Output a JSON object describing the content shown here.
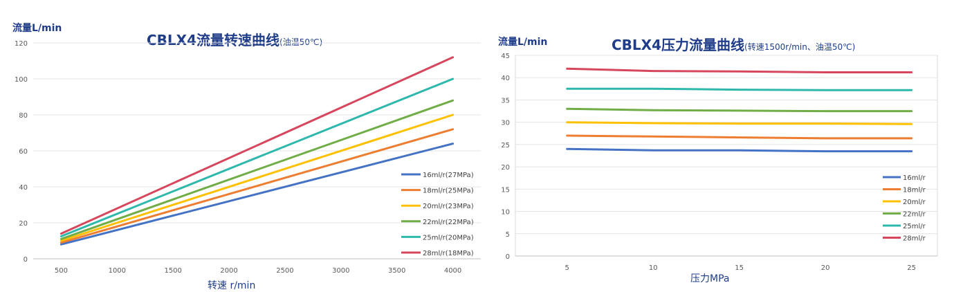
{
  "chart_data": [
    {
      "type": "line",
      "title": "CBLX4流量转速曲线",
      "subtitle": "(油温50℃)",
      "ylabel": "流量L/min",
      "xlabel": "转速 r/min",
      "ylim": [
        0,
        120
      ],
      "yticks": [
        0,
        20,
        40,
        60,
        80,
        100,
        120
      ],
      "xlim": [
        250,
        4250
      ],
      "xticks": [
        500,
        1000,
        1500,
        2000,
        2500,
        3000,
        3500,
        4000
      ],
      "grid": true,
      "legend_position": "bottom-right",
      "x": [
        500,
        4000
      ],
      "series": [
        {
          "name": "16ml/r(27MPa)",
          "color": "#4472c4",
          "values": [
            8,
            64
          ]
        },
        {
          "name": "18ml/r(25MPa)",
          "color": "#ed7d31",
          "values": [
            9,
            72
          ]
        },
        {
          "name": "20ml/r(23MPa)",
          "color": "#ffc000",
          "values": [
            10,
            80
          ]
        },
        {
          "name": "22ml/r(22MPa)",
          "color": "#70ad47",
          "values": [
            11,
            88
          ]
        },
        {
          "name": "25ml/r(20MPa)",
          "color": "#2eb8ac",
          "values": [
            12.5,
            100
          ]
        },
        {
          "name": "28ml/r(18MPa)",
          "color": "#d6475d",
          "values": [
            14,
            112
          ]
        }
      ]
    },
    {
      "type": "line",
      "title": "CBLX4压力流量曲线",
      "subtitle": "(转速1500r/min、油温50℃)",
      "ylabel": "流量L/min",
      "xlabel": "压力MPa",
      "ylim": [
        0,
        45
      ],
      "yticks": [
        0,
        5,
        10,
        15,
        20,
        25,
        30,
        35,
        40,
        45
      ],
      "xlim": [
        2,
        26.5
      ],
      "xticks": [
        5,
        10,
        15,
        20,
        25
      ],
      "grid": true,
      "legend_position": "bottom-right",
      "x": [
        5,
        10,
        15,
        20,
        25
      ],
      "series": [
        {
          "name": "16ml/r",
          "color": "#4472c4",
          "values": [
            24,
            23.7,
            23.7,
            23.5,
            23.5
          ]
        },
        {
          "name": "18ml/r",
          "color": "#ed7d31",
          "values": [
            27,
            26.8,
            26.6,
            26.4,
            26.4
          ]
        },
        {
          "name": "20ml/r",
          "color": "#ffc000",
          "values": [
            30,
            29.8,
            29.7,
            29.7,
            29.6
          ]
        },
        {
          "name": "22ml/r",
          "color": "#70ad47",
          "values": [
            33,
            32.7,
            32.6,
            32.5,
            32.5
          ]
        },
        {
          "name": "25ml/r",
          "color": "#2eb8ac",
          "values": [
            37.5,
            37.5,
            37.3,
            37.2,
            37.2
          ]
        },
        {
          "name": "28ml/r",
          "color": "#d6475d",
          "values": [
            42,
            41.5,
            41.4,
            41.2,
            41.2
          ]
        }
      ]
    }
  ]
}
